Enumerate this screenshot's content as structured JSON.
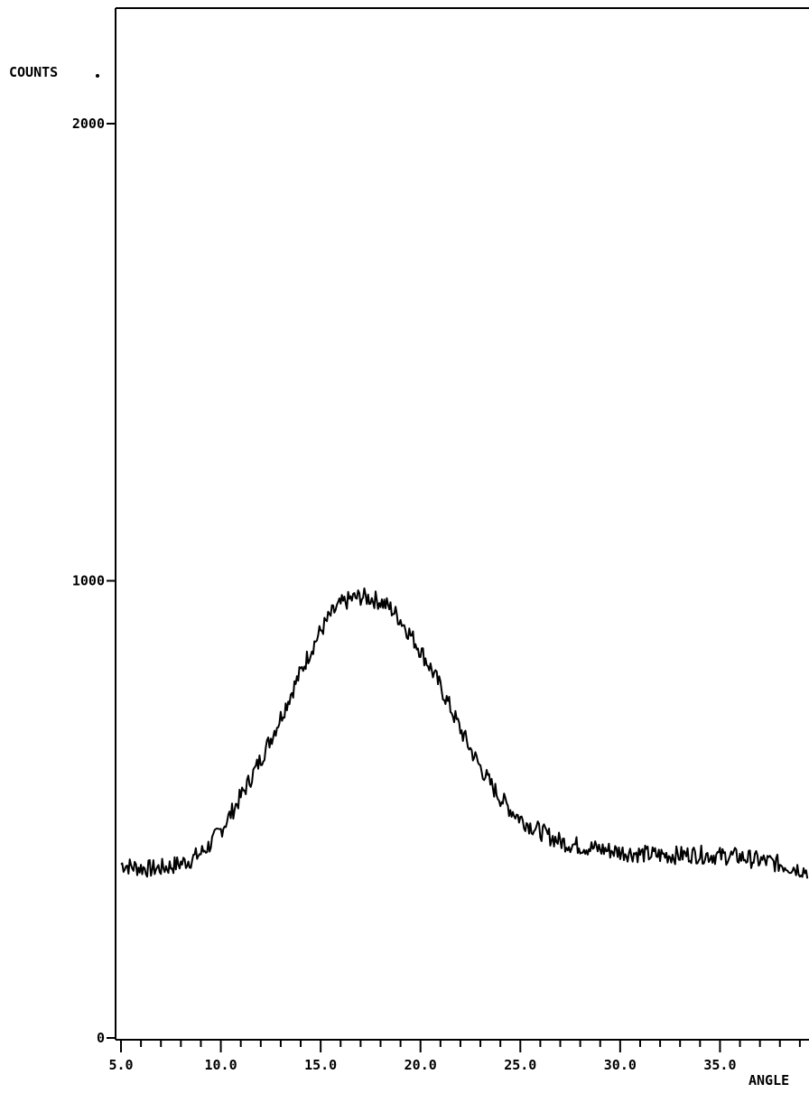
{
  "chart_data": {
    "type": "line",
    "ylabel": "COUNTS",
    "xlabel": "ANGLE",
    "y_ticks": [
      {
        "value": 0,
        "label": "0"
      },
      {
        "value": 1000,
        "label": "1000"
      },
      {
        "value": 2000,
        "label": "2000"
      }
    ],
    "x_ticks": [
      {
        "value": 5,
        "label": "5.0"
      },
      {
        "value": 10,
        "label": "10.0"
      },
      {
        "value": 15,
        "label": "15.0"
      },
      {
        "value": 20,
        "label": "20.0"
      },
      {
        "value": 25,
        "label": "25.0"
      },
      {
        "value": 30,
        "label": "30.0"
      },
      {
        "value": 35,
        "label": "35.0"
      }
    ],
    "xlim": [
      5,
      40
    ],
    "ylim": [
      0,
      2000
    ],
    "grid": false,
    "series": [
      {
        "x": [
          5,
          5.5,
          6,
          6.5,
          7,
          7.5,
          8,
          8.5,
          9,
          9.5,
          10,
          10.5,
          11,
          11.5,
          12,
          12.5,
          13,
          13.5,
          14,
          14.5,
          15,
          15.5,
          16,
          16.5,
          17,
          17.5,
          18,
          18.5,
          19,
          19.5,
          20,
          20.5,
          21,
          21.5,
          22,
          22.5,
          23,
          23.5,
          24,
          24.5,
          25,
          25.5,
          26,
          26.5,
          27,
          27.5,
          28,
          28.5,
          29,
          29.5,
          30,
          30.5,
          31,
          31.5,
          32,
          32.5,
          33,
          33.5,
          34,
          34.5,
          35,
          35.5,
          36,
          36.5,
          37,
          37.5,
          38,
          38.5,
          39,
          39.5,
          40
        ],
        "values": [
          380,
          375,
          372,
          370,
          372,
          376,
          382,
          390,
          404,
          425,
          455,
          490,
          528,
          568,
          610,
          655,
          702,
          752,
          800,
          848,
          890,
          925,
          948,
          960,
          965,
          962,
          955,
          940,
          915,
          882,
          848,
          810,
          768,
          722,
          675,
          632,
          592,
          556,
          525,
          500,
          480,
          465,
          452,
          440,
          430,
          424,
          420,
          416,
          413,
          410,
          407,
          405,
          403,
          401,
          400,
          400,
          400,
          402,
          401,
          400,
          398,
          398,
          396,
          392,
          388,
          385,
          380,
          375,
          370,
          364,
          358
        ]
      }
    ]
  }
}
